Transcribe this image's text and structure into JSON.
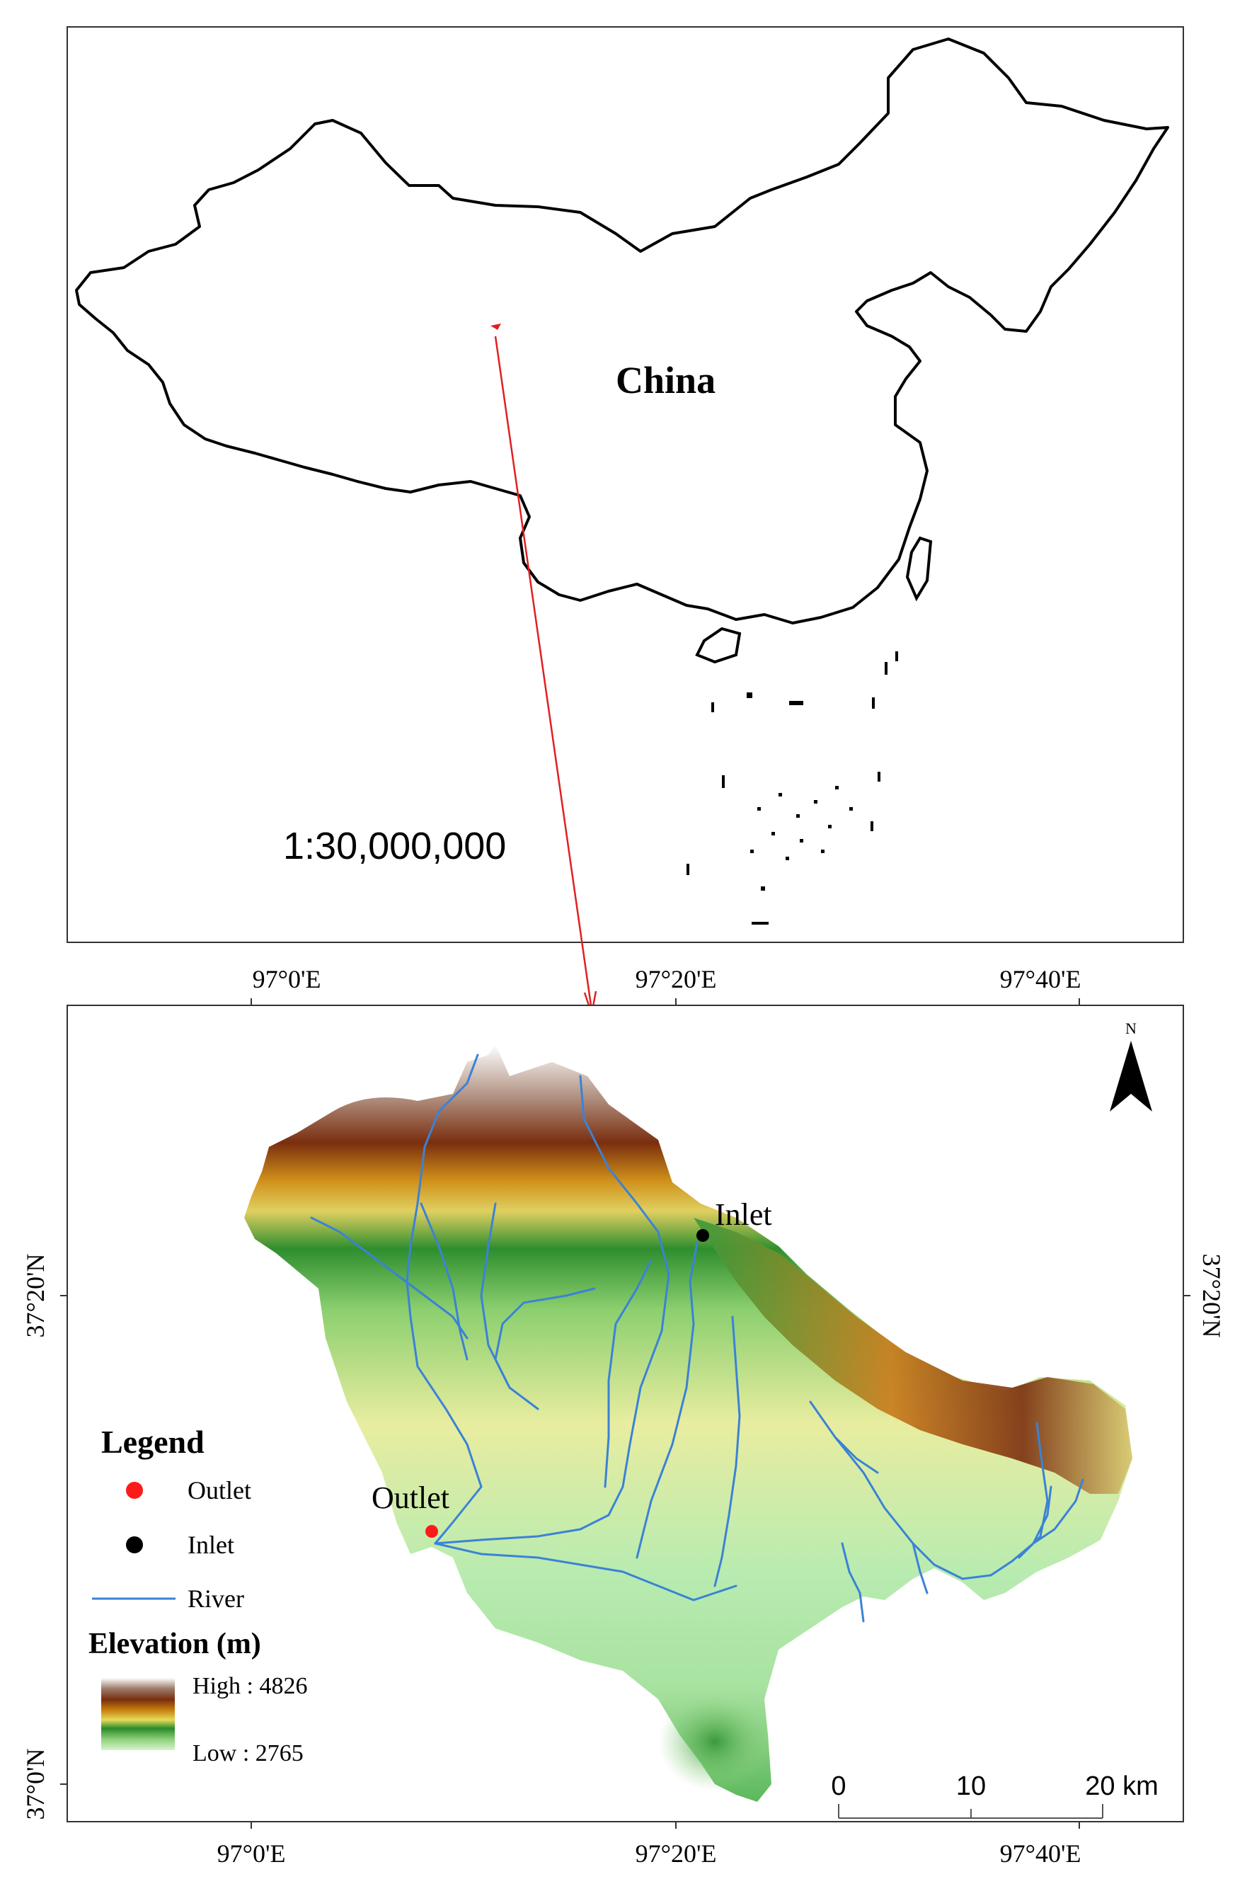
{
  "overview_map": {
    "country_label": "China",
    "scale_text": "1:30,000,000"
  },
  "detail_map": {
    "top_ticks": [
      "97°0'E",
      "97°20'E",
      "97°40'E"
    ],
    "bottom_ticks": [
      "97°0'E",
      "97°20'E",
      "97°40'E"
    ],
    "left_ticks": [
      "37°20'N",
      "37°0'N"
    ],
    "right_ticks": [
      "37°20'N"
    ],
    "north_label": "N",
    "point_labels": {
      "inlet": "Inlet",
      "outlet": "Outlet"
    },
    "scale_bar": {
      "labels": [
        "0",
        "10",
        "20 km"
      ]
    }
  },
  "legend": {
    "title": "Legend",
    "items": [
      {
        "label": "Outlet",
        "symbol": "red-dot",
        "color": "#ff1a1a"
      },
      {
        "label": "Inlet",
        "symbol": "black-dot",
        "color": "#000000"
      },
      {
        "label": "River",
        "symbol": "blue-line",
        "color": "#3b82d6"
      }
    ],
    "elevation_title": "Elevation (m)",
    "elevation_high": "High : 4826",
    "elevation_low": "Low : 2765"
  },
  "colors": {
    "frame": "#333333",
    "arrow": "#e02020",
    "river": "#3b82d6",
    "elevation_ramp": [
      "#ffffff",
      "#8b5a3c",
      "#7a2e0e",
      "#d99a1a",
      "#e8e06a",
      "#2a8a2a",
      "#8fd07a",
      "#d8f0c8"
    ]
  }
}
